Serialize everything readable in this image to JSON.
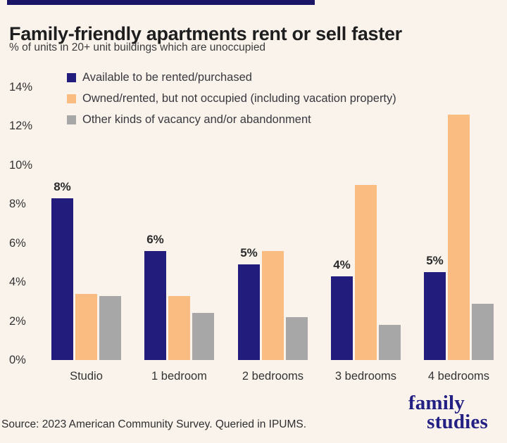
{
  "header": {
    "title": "Family-friendly apartments rent or sell faster",
    "subtitle": "% of units in 20+ unit buildings which are unoccupied"
  },
  "chart_data": {
    "type": "bar",
    "title": "Family-friendly apartments rent or sell faster",
    "subtitle": "% of units in 20+ unit buildings which are unoccupied",
    "categories": [
      "Studio",
      "1 bedroom",
      "2 bedrooms",
      "3 bedrooms",
      "4 bedrooms"
    ],
    "series": [
      {
        "name": "Available to be rented/purchased",
        "color": "#221C7D",
        "values": [
          8.3,
          5.6,
          4.9,
          4.3,
          4.5
        ],
        "data_labels": [
          "8%",
          "6%",
          "5%",
          "4%",
          "5%"
        ]
      },
      {
        "name": "Owned/rented, but not occupied (including vacation property)",
        "color": "#FBBC82",
        "values": [
          3.4,
          3.3,
          5.6,
          9.0,
          12.6
        ]
      },
      {
        "name": "Other kinds of vacancy and/or abandonment",
        "color": "#A7A7A7",
        "values": [
          3.3,
          2.4,
          2.2,
          1.8,
          2.9
        ]
      }
    ],
    "ylabel": "",
    "xlabel": "",
    "ylim": [
      0,
      14
    ],
    "ytick_labels": [
      "0%",
      "2%",
      "4%",
      "6%",
      "8%",
      "10%",
      "12%",
      "14%"
    ],
    "grid": false,
    "legend_position": "top-left"
  },
  "footer": {
    "source": "Source: 2023 American Community Survey. Queried in IPUMS.",
    "logo_line1": "family",
    "logo_line2": "studies"
  },
  "colors": {
    "background": "#FAF3EC",
    "accent_navy": "#221C7D",
    "accent_orange": "#FBBC82",
    "accent_gray": "#A7A7A7",
    "logo_navy": "#232084",
    "top_bar": "#1B1567"
  }
}
